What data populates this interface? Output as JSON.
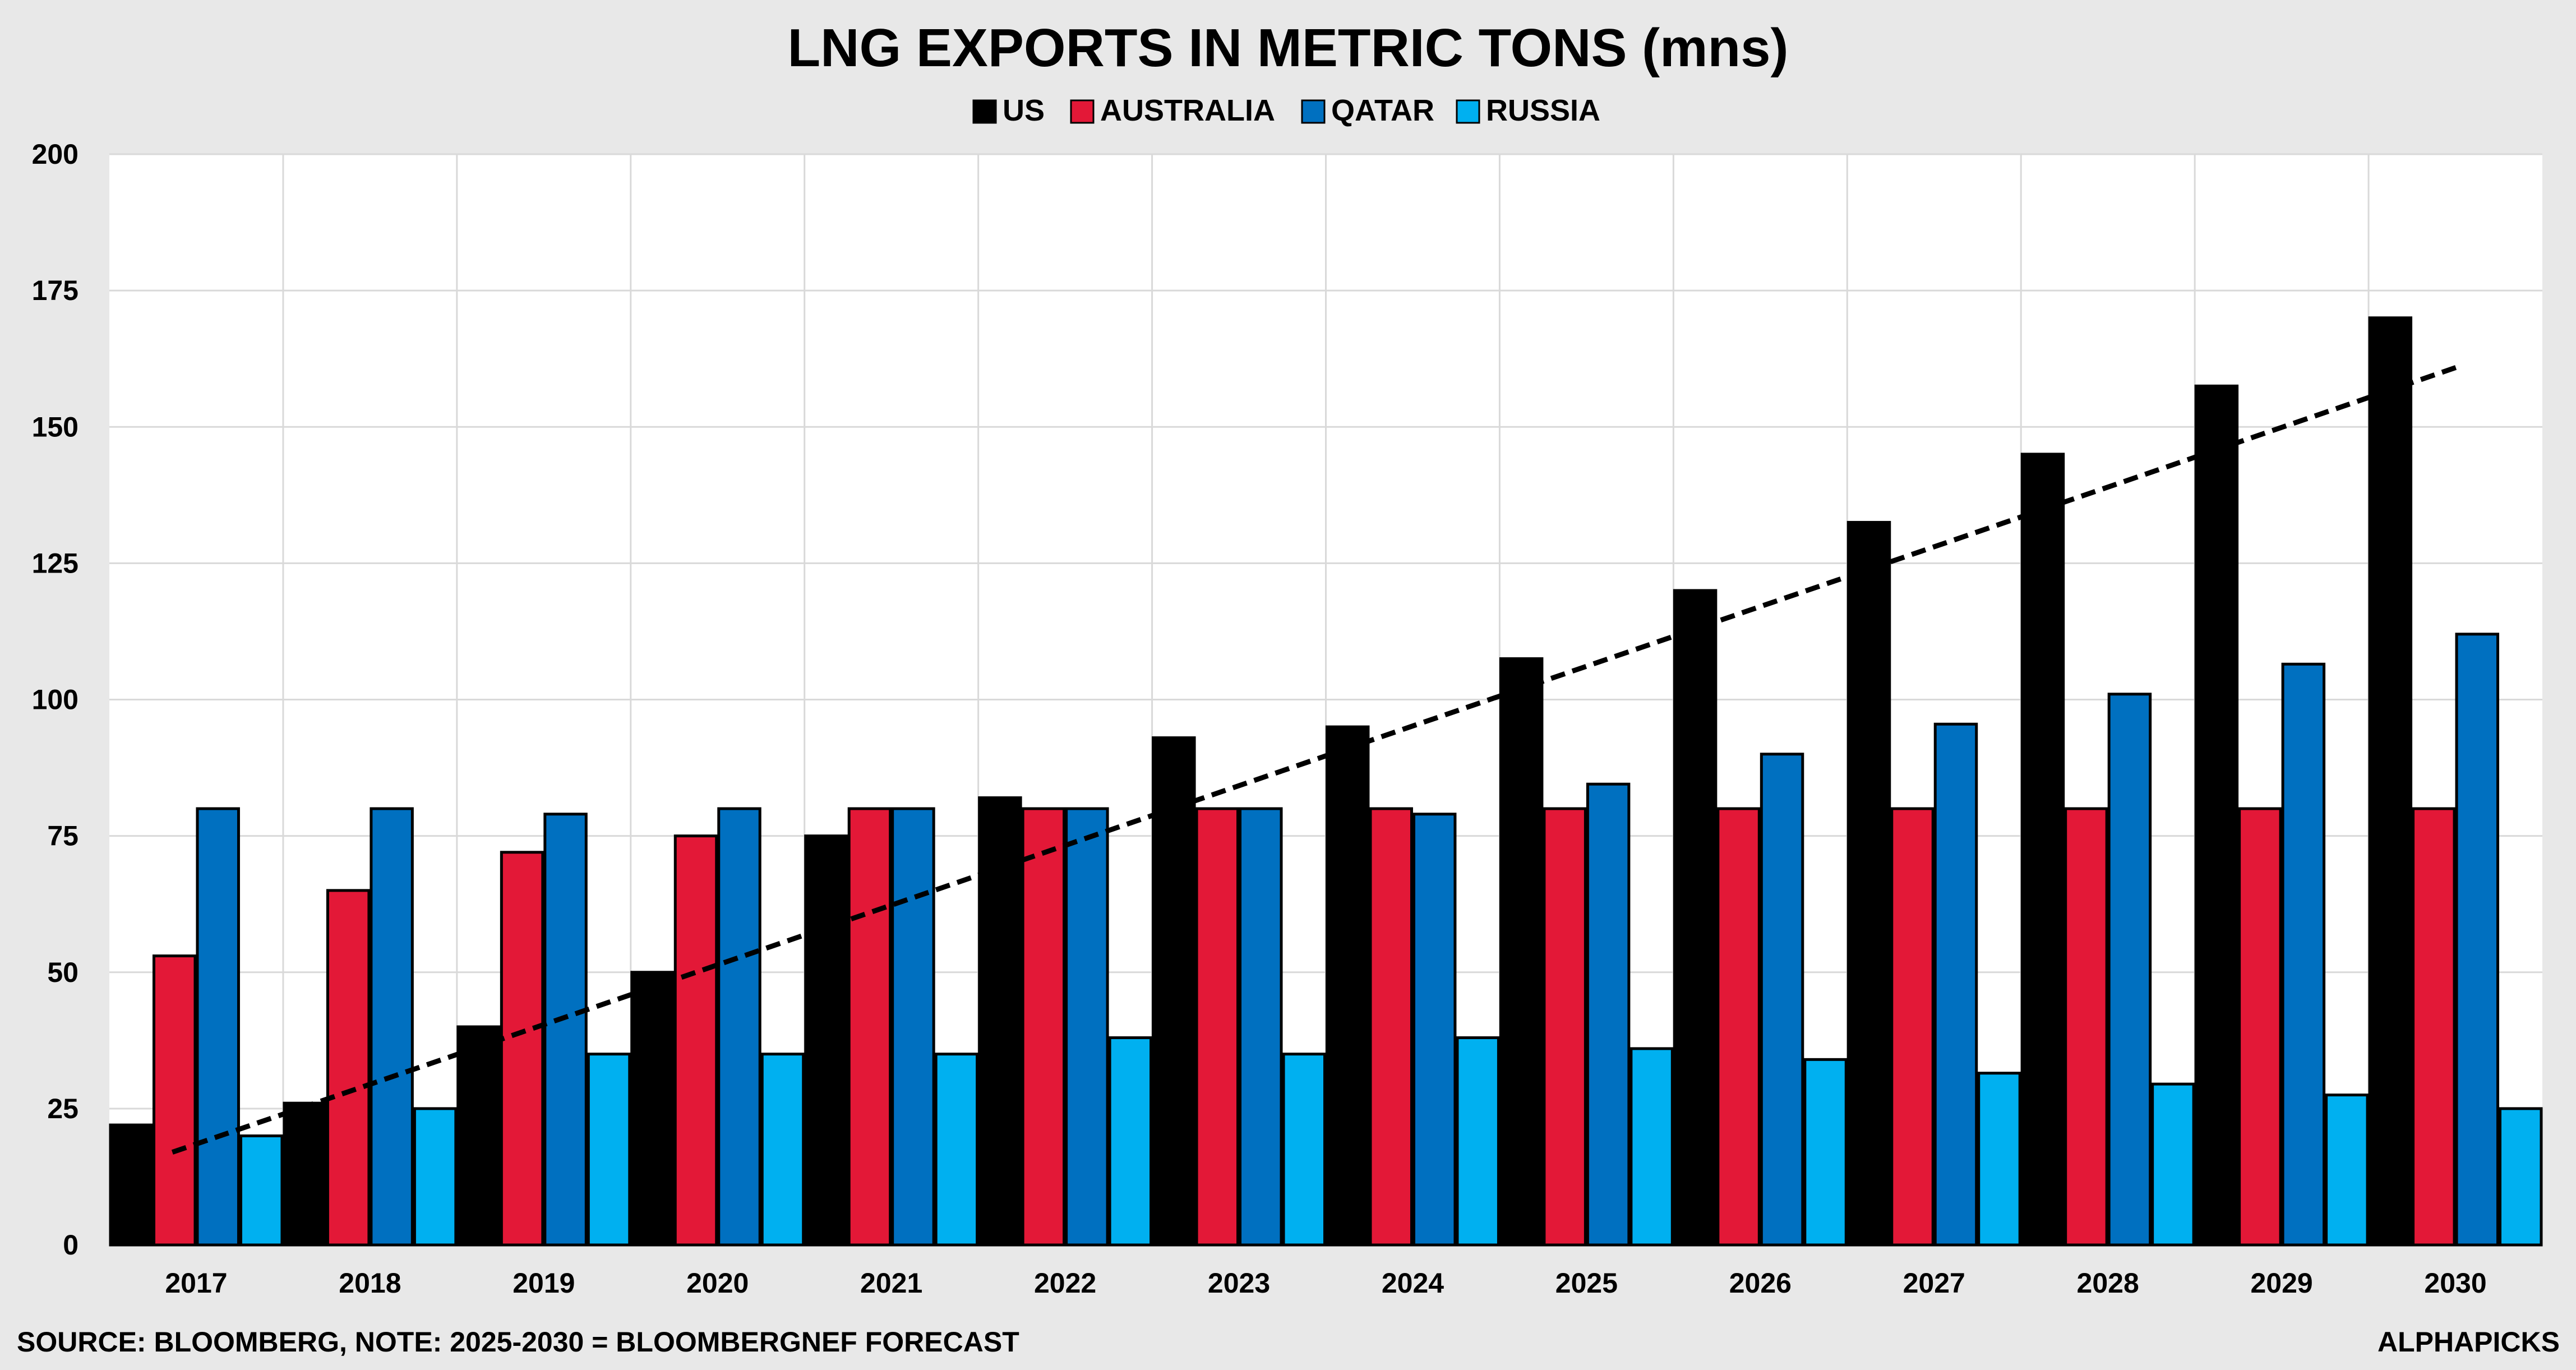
{
  "chart_data": {
    "type": "bar",
    "title": "LNG EXPORTS IN METRIC TONS (mns)",
    "xlabel": "",
    "ylabel": "",
    "ylim": [
      0,
      200
    ],
    "yticks": [
      "0",
      "25",
      "50",
      "75",
      "100",
      "125",
      "150",
      "175",
      "200"
    ],
    "categories": [
      "2017",
      "2018",
      "2019",
      "2020",
      "2021",
      "2022",
      "2023",
      "2024",
      "2025",
      "2026",
      "2027",
      "2028",
      "2029",
      "2030"
    ],
    "series": [
      {
        "name": "US",
        "color": "#000000",
        "values": [
          22,
          26,
          40,
          50,
          75,
          82,
          93,
          95,
          107.5,
          120,
          132.5,
          145,
          157.5,
          170
        ]
      },
      {
        "name": "AUSTRALIA",
        "color": "#e31837",
        "values": [
          53,
          65,
          72,
          75,
          80,
          80,
          80,
          80,
          80,
          80,
          80,
          80,
          80,
          80
        ]
      },
      {
        "name": "QATAR",
        "color": "#0070c0",
        "values": [
          80,
          80,
          79,
          80,
          80,
          80,
          80,
          79,
          84.5,
          90,
          95.5,
          101,
          106.5,
          112
        ]
      },
      {
        "name": "RUSSIA",
        "color": "#00b0f0",
        "values": [
          20,
          25,
          35,
          35,
          35,
          38,
          35,
          38,
          36,
          34,
          31.5,
          29.5,
          27.5,
          25
        ]
      }
    ],
    "trendline": {
      "series": "US",
      "style": "dashed",
      "color": "#000000",
      "start": {
        "x": "2017",
        "y": 17
      },
      "end": {
        "x": "2030",
        "y": 161
      }
    },
    "grid": true,
    "legend_position": "top-center"
  },
  "footer": {
    "source": "SOURCE: BLOOMBERG, NOTE: 2025-2030 = BLOOMBERGNEF FORECAST",
    "brand": "ALPHAPICKS"
  }
}
